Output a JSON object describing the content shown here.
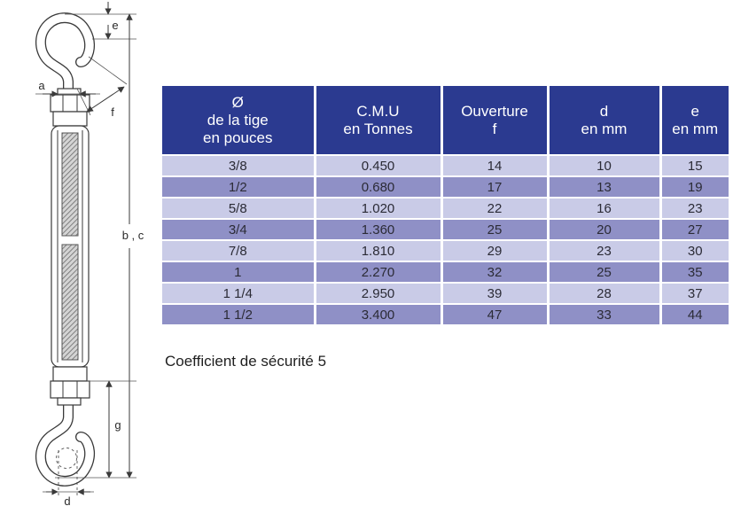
{
  "colors": {
    "header_bg": "#2b3a90",
    "header_text": "#ffffff",
    "row_light": "#c9cbe7",
    "row_dark": "#8f90c6",
    "cell_text": "#2b2b36",
    "line": "#3a3a3a"
  },
  "diagram": {
    "description": "turnbuckle-hook-and-hook-technical-drawing",
    "labels": {
      "a": "a",
      "e": "e",
      "f": "f",
      "g": "g",
      "d": "d",
      "bc": "b , c"
    }
  },
  "table": {
    "headers": [
      "Ø\nde la tige\nen pouces",
      "C.M.U\nen Tonnes",
      "Ouverture\nf",
      "d\nen mm",
      "e\nen mm"
    ],
    "rows": [
      [
        "3/8",
        "0.450",
        "14",
        "10",
        "15"
      ],
      [
        "1/2",
        "0.680",
        "17",
        "13",
        "19"
      ],
      [
        "5/8",
        "1.020",
        "22",
        "16",
        "23"
      ],
      [
        "3/4",
        "1.360",
        "25",
        "20",
        "27"
      ],
      [
        "7/8",
        "1.810",
        "29",
        "23",
        "30"
      ],
      [
        "1",
        "2.270",
        "32",
        "25",
        "35"
      ],
      [
        "1 1/4",
        "2.950",
        "39",
        "28",
        "37"
      ],
      [
        "1 1/2",
        "3.400",
        "47",
        "33",
        "44"
      ]
    ]
  },
  "footer": {
    "note": "Coefficient de sécurité 5"
  }
}
